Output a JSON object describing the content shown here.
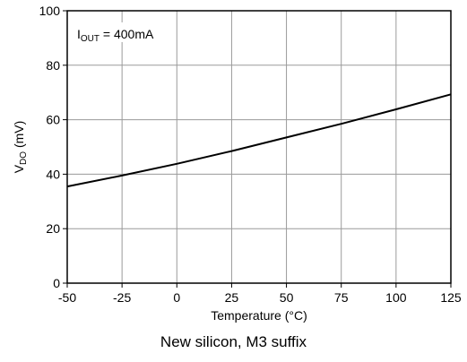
{
  "chart_data": {
    "type": "line",
    "annotation": {
      "main": "I",
      "sub": "OUT",
      "rest": " = 400mA"
    },
    "xlabel": "Temperature (°C)",
    "ylabel": {
      "main": "V",
      "sub": "DO",
      "rest": " (mV)"
    },
    "xlim": [
      -50,
      125
    ],
    "ylim": [
      0,
      100
    ],
    "xticks": [
      -50,
      -25,
      0,
      25,
      50,
      75,
      100,
      125
    ],
    "yticks": [
      0,
      20,
      40,
      60,
      80,
      100
    ],
    "grid": true,
    "series": [
      {
        "x": [
          -50,
          -25,
          0,
          25,
          50,
          75,
          100,
          125
        ],
        "y": [
          35.5,
          39.5,
          43.8,
          48.5,
          53.5,
          58.5,
          63.8,
          69.3
        ]
      }
    ],
    "line_color": "#000000"
  },
  "caption": "New silicon, M3 suffix"
}
